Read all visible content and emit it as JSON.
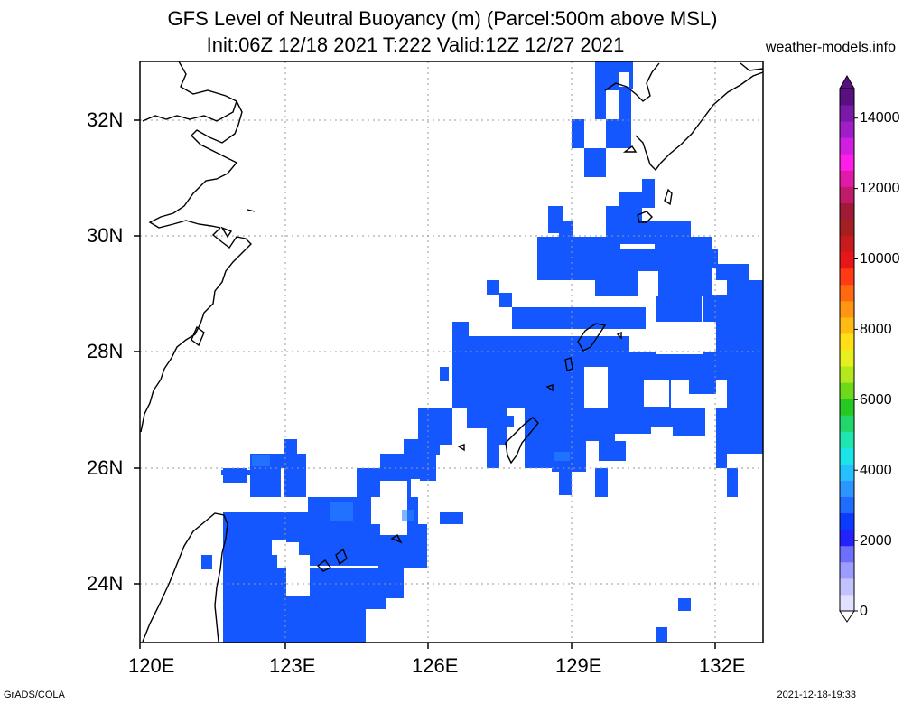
{
  "title": {
    "line1": "GFS Level of Neutral Buoyancy (m) (Parcel:500m above MSL)",
    "line2": "Init:06Z 12/18 2021 T:222 Valid:12Z 12/27 2021"
  },
  "site": "weather-models.info",
  "footer": {
    "left": "GrADS/COLA",
    "right": "2021-12-18-19:33"
  },
  "map": {
    "lon_range": [
      120,
      133
    ],
    "lat_range": [
      23,
      33
    ],
    "lon_ticks": [
      "120E",
      "123E",
      "126E",
      "129E",
      "132E"
    ],
    "lat_ticks": [
      "32N",
      "30N",
      "28N",
      "26N",
      "24N"
    ],
    "field_color": "#1457ff",
    "field_color_light": "#2a86ff"
  },
  "colorbar": {
    "labels": [
      "14000",
      "12000",
      "10000",
      "8000",
      "6000",
      "4000",
      "2000",
      "0"
    ],
    "colors": [
      "#e2e0ff",
      "#c2c2ff",
      "#9c9cff",
      "#6f6fff",
      "#2222ff",
      "#0b3bff",
      "#1f6cff",
      "#2b96ff",
      "#26c0ff",
      "#1ce5e8",
      "#1fe6b0",
      "#21d66b",
      "#28c823",
      "#6ed81b",
      "#b4e81c",
      "#e6f01f",
      "#ffe018",
      "#ffbb12",
      "#ff9510",
      "#ff6a10",
      "#ff3a14",
      "#e8161a",
      "#c81b1e",
      "#a31f20",
      "#9e1a36",
      "#c01a6a",
      "#e01aa8",
      "#ff1ee8",
      "#d21ee0",
      "#a01ec8",
      "#7a18a8",
      "#581080"
    ]
  }
}
